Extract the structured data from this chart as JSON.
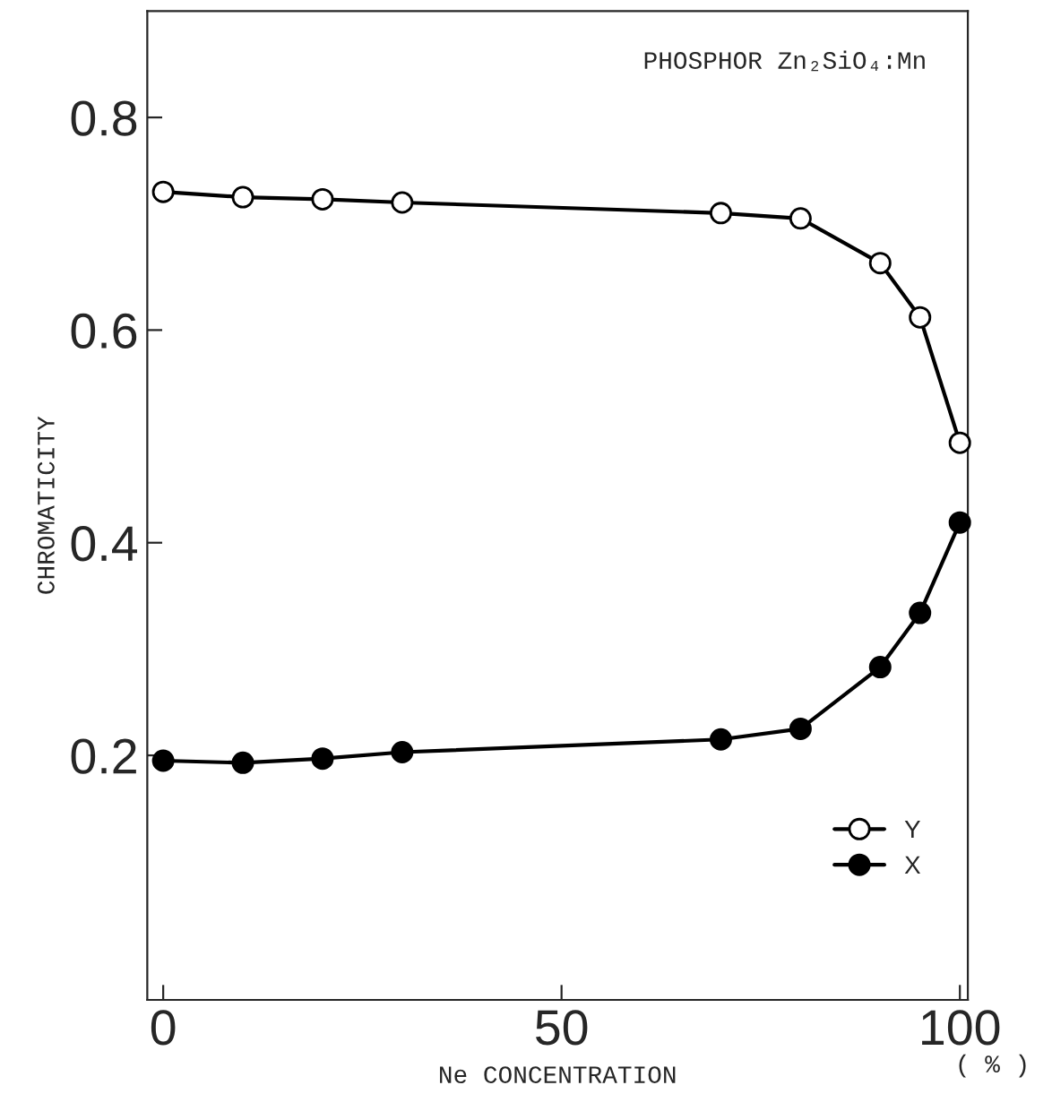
{
  "chart_data": {
    "type": "line",
    "xlabel": "Ne CONCENTRATION",
    "ylabel": "CHROMATICITY",
    "annotations": [
      "PHOSPHOR Zn₂SiO₄:Mn",
      "( % )"
    ],
    "x": [
      0,
      10,
      20,
      30,
      70,
      80,
      90,
      95,
      100
    ],
    "series": [
      {
        "name": "Y",
        "color": "#000000",
        "marker": "circle_open",
        "values": [
          0.73,
          0.725,
          0.723,
          0.72,
          0.71,
          0.705,
          0.663,
          0.612,
          0.494
        ]
      },
      {
        "name": "X",
        "color": "#000000",
        "marker": "circle",
        "values": [
          0.195,
          0.193,
          0.197,
          0.203,
          0.215,
          0.225,
          0.283,
          0.334,
          0.419
        ]
      }
    ],
    "xlim": [
      -2,
      101
    ],
    "ylim": [
      -0.03,
      0.9
    ],
    "xticks": [
      0,
      50,
      100
    ],
    "yticks": [
      0.2,
      0.4,
      0.6,
      0.8
    ],
    "grid": false,
    "legend": "bottom right",
    "line_style": "solid"
  }
}
